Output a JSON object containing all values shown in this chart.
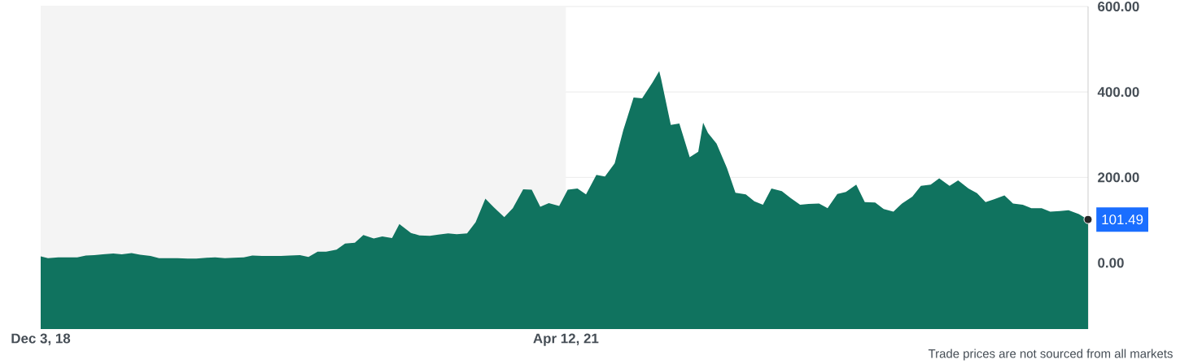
{
  "chart_data": {
    "type": "area",
    "x": [
      "2018-12-03",
      "2018-12-15",
      "2019-01-01",
      "2019-01-15",
      "2019-02-01",
      "2019-02-15",
      "2019-03-01",
      "2019-03-15",
      "2019-04-01",
      "2019-04-15",
      "2019-05-01",
      "2019-05-15",
      "2019-06-01",
      "2019-06-15",
      "2019-07-01",
      "2019-07-15",
      "2019-08-01",
      "2019-08-15",
      "2019-09-01",
      "2019-09-15",
      "2019-10-01",
      "2019-10-15",
      "2019-11-01",
      "2019-11-15",
      "2019-12-01",
      "2019-12-15",
      "2020-01-01",
      "2020-01-15",
      "2020-02-01",
      "2020-02-15",
      "2020-03-01",
      "2020-03-15",
      "2020-04-01",
      "2020-04-15",
      "2020-05-01",
      "2020-05-15",
      "2020-06-01",
      "2020-06-15",
      "2020-07-01",
      "2020-07-13",
      "2020-08-01",
      "2020-08-15",
      "2020-09-01",
      "2020-09-15",
      "2020-10-01",
      "2020-10-15",
      "2020-11-01",
      "2020-11-15",
      "2020-12-01",
      "2020-12-15",
      "2021-01-01",
      "2021-01-15",
      "2021-02-01",
      "2021-02-15",
      "2021-03-01",
      "2021-03-15",
      "2021-04-01",
      "2021-04-15",
      "2021-05-01",
      "2021-05-15",
      "2021-06-01",
      "2021-06-15",
      "2021-07-01",
      "2021-07-15",
      "2021-08-01",
      "2021-08-15",
      "2021-09-01",
      "2021-09-12",
      "2021-09-15",
      "2021-10-01",
      "2021-10-15",
      "2021-11-01",
      "2021-11-15",
      "2021-11-23",
      "2021-12-01",
      "2021-12-15",
      "2022-01-01",
      "2022-01-15",
      "2022-02-01",
      "2022-02-15",
      "2022-03-01",
      "2022-03-15",
      "2022-04-01",
      "2022-04-15",
      "2022-05-01",
      "2022-05-15",
      "2022-06-01",
      "2022-06-15",
      "2022-07-01",
      "2022-07-15",
      "2022-08-01",
      "2022-08-15",
      "2022-09-01",
      "2022-09-15",
      "2022-10-01",
      "2022-10-15",
      "2022-11-01",
      "2022-11-15",
      "2022-12-01",
      "2022-12-15",
      "2023-01-01",
      "2023-01-15",
      "2023-02-01",
      "2023-02-15",
      "2023-03-01",
      "2023-03-15",
      "2023-04-01",
      "2023-04-15",
      "2023-05-01",
      "2023-05-15",
      "2023-06-01",
      "2023-06-15",
      "2023-07-01",
      "2023-07-15",
      "2023-08-01",
      "2023-08-16"
    ],
    "series": [
      {
        "color": "#10735f",
        "values": [
          15,
          11,
          13,
          13,
          13,
          17,
          18,
          20,
          22,
          20,
          23,
          19,
          16,
          11,
          11,
          11,
          10,
          10,
          12,
          13,
          11,
          12,
          13,
          17,
          16,
          16,
          16,
          17,
          18,
          14,
          26,
          26,
          31,
          45,
          47,
          65,
          57,
          62,
          58,
          91,
          70,
          64,
          63,
          66,
          69,
          67,
          69,
          95,
          150,
          130,
          107,
          128,
          172,
          171,
          131,
          140,
          133,
          171,
          174,
          160,
          206,
          202,
          233,
          310,
          387,
          385,
          422,
          449,
          431,
          323,
          326,
          247,
          260,
          328,
          304,
          279,
          222,
          164,
          160,
          144,
          136,
          174,
          168,
          152,
          136,
          138,
          139,
          128,
          161,
          166,
          183,
          142,
          141,
          126,
          120,
          139,
          155,
          180,
          183,
          198,
          180,
          193,
          174,
          163,
          142,
          149,
          158,
          139,
          136,
          128,
          128,
          120,
          121,
          123,
          114,
          101
        ]
      }
    ],
    "xlim": [
      "2018-12-03",
      "2023-08-16"
    ],
    "xticks": [
      {
        "value": "2018-12-03",
        "label": "Dec 3, 18"
      },
      {
        "value": "2021-04-12",
        "label": "Apr 12, 21"
      }
    ],
    "ylim": [
      -155,
      600
    ],
    "yticks": [
      {
        "value": 0,
        "label": "0.00"
      },
      {
        "value": 200,
        "label": "200.00"
      },
      {
        "value": 400,
        "label": "400.00"
      },
      {
        "value": 600,
        "label": "600.00"
      }
    ],
    "grid": "y",
    "bands": [
      {
        "axis": "x",
        "from": "2018-12-03",
        "to": "2021-04-12",
        "color": "#f4f4f4"
      }
    ],
    "annotations": [
      {
        "text": "101.49",
        "x": "2023-08-16",
        "y": 101.49
      },
      "Trade prices are not sourced from all markets"
    ]
  }
}
